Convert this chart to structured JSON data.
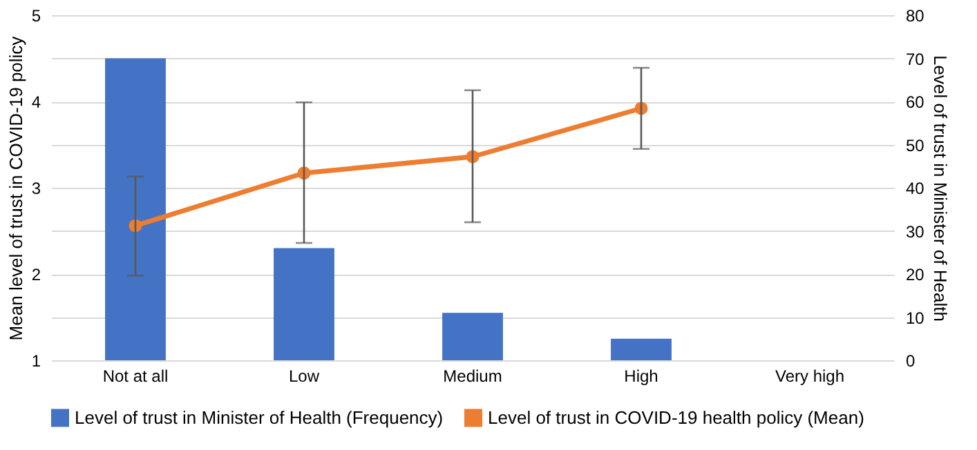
{
  "chart_data": {
    "type": "bar",
    "categories": [
      "Not at all",
      "Low",
      "Medium",
      "High",
      "Very high"
    ],
    "ylabel": "Mean level of trust in COVID-19 policy",
    "y2label": "Level of trust in Minister of Health",
    "series": [
      {
        "name": "Level of trust in Minister of Health (Frequency)",
        "axis": "y2",
        "color": "#4472c4",
        "values": [
          70,
          26,
          11,
          5,
          0
        ]
      },
      {
        "name": "Level of trust in COVID-19 health policy (Mean)",
        "type": "line",
        "axis": "y",
        "color": "#ed7d31",
        "marker": "circle",
        "values": [
          2.56,
          3.17,
          3.36,
          3.92,
          null
        ],
        "errors": [
          [
            1.98,
            3.13
          ],
          [
            2.36,
            3.99
          ],
          [
            2.6,
            4.13
          ],
          [
            3.45,
            4.39
          ],
          null
        ]
      }
    ],
    "ylim": [
      1,
      5
    ],
    "yticks": [
      1,
      2,
      3,
      4,
      5
    ],
    "y2lim": [
      0,
      80
    ],
    "y2ticks": [
      0,
      10,
      20,
      30,
      40,
      50,
      60,
      70,
      80
    ],
    "grid": "y2",
    "legend": "bottom"
  }
}
